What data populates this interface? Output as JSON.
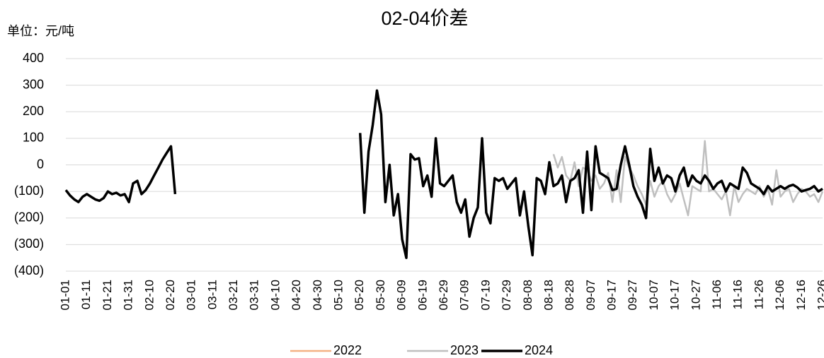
{
  "chart_data": {
    "type": "line",
    "title": "02-04价差",
    "unit_label": "单位：元/吨",
    "categories": [
      "01-01",
      null,
      null,
      null,
      null,
      "01-11",
      null,
      null,
      null,
      null,
      "01-21",
      null,
      null,
      null,
      null,
      "01-31",
      null,
      null,
      null,
      null,
      "02-10",
      null,
      null,
      null,
      null,
      "02-20",
      null,
      null,
      null,
      null,
      "03-01",
      null,
      null,
      null,
      null,
      "03-11",
      null,
      null,
      null,
      null,
      "03-21",
      null,
      null,
      null,
      null,
      "03-31",
      null,
      null,
      null,
      null,
      "04-10",
      null,
      null,
      null,
      null,
      "04-20",
      null,
      null,
      null,
      null,
      "04-30",
      null,
      null,
      null,
      null,
      "05-10",
      null,
      null,
      null,
      null,
      "05-20",
      null,
      null,
      null,
      null,
      "05-30",
      null,
      null,
      null,
      null,
      "06-09",
      null,
      null,
      null,
      null,
      "06-19",
      null,
      null,
      null,
      null,
      "06-29",
      null,
      null,
      null,
      null,
      "07-09",
      null,
      null,
      null,
      null,
      "07-19",
      null,
      null,
      null,
      null,
      "07-29",
      null,
      null,
      null,
      null,
      "08-08",
      null,
      null,
      null,
      null,
      "08-18",
      null,
      null,
      null,
      null,
      "08-28",
      null,
      null,
      null,
      null,
      "09-07",
      null,
      null,
      null,
      null,
      "09-17",
      null,
      null,
      null,
      null,
      "09-27",
      null,
      null,
      null,
      null,
      "10-07",
      null,
      null,
      null,
      null,
      "10-17",
      null,
      null,
      null,
      null,
      "10-27",
      null,
      null,
      null,
      null,
      "11-06",
      null,
      null,
      null,
      null,
      "11-16",
      null,
      null,
      null,
      null,
      "11-26",
      null,
      null,
      null,
      null,
      "12-06",
      null,
      null,
      null,
      null,
      "12-16",
      null,
      null,
      null,
      null,
      "12-26"
    ],
    "series": [
      {
        "name": "2022",
        "color": "#f4b183",
        "width": 2.5,
        "values": [
          null,
          null,
          null,
          null,
          null,
          null,
          null,
          null,
          null,
          null,
          null,
          null,
          null,
          null,
          null,
          null,
          null,
          null,
          null,
          null,
          null,
          null,
          null,
          null,
          null,
          null,
          null,
          null,
          null,
          null,
          null,
          null,
          null,
          null,
          null,
          null,
          null,
          null,
          null,
          null,
          null,
          null,
          null,
          null,
          null,
          null,
          null,
          null,
          null,
          null,
          null,
          null,
          null,
          null,
          null,
          null,
          null,
          null,
          null,
          null,
          null,
          null,
          null,
          null,
          null,
          null,
          null,
          null,
          null,
          null,
          null,
          null,
          null,
          null,
          null,
          null,
          null,
          null,
          null,
          null,
          null,
          null,
          null,
          null,
          null,
          null,
          null,
          null,
          null,
          null,
          null,
          null,
          null,
          null,
          null,
          null,
          null,
          null,
          null,
          null,
          null,
          null,
          null,
          null,
          null,
          null,
          null,
          null,
          null,
          null,
          null,
          null,
          null,
          null,
          null,
          null,
          null,
          null,
          null,
          null,
          null,
          null,
          null,
          null,
          null,
          null,
          null,
          null,
          null,
          null,
          null,
          null,
          null,
          null,
          null,
          null,
          null,
          null,
          null,
          null,
          null,
          null,
          null,
          null,
          null,
          null,
          null,
          null,
          null,
          null,
          null,
          null,
          null,
          null,
          null,
          null,
          null,
          null,
          null,
          null,
          null,
          null,
          null,
          null,
          null,
          null,
          null,
          null,
          null,
          null,
          null,
          null,
          null,
          null,
          null,
          null,
          null,
          null,
          null,
          null,
          null
        ]
      },
      {
        "name": "2023",
        "color": "#bfbfbf",
        "width": 2.5,
        "values": [
          null,
          null,
          null,
          null,
          null,
          null,
          null,
          null,
          null,
          null,
          null,
          null,
          null,
          null,
          null,
          null,
          null,
          null,
          null,
          null,
          null,
          null,
          null,
          null,
          null,
          null,
          null,
          null,
          null,
          null,
          null,
          null,
          null,
          null,
          null,
          null,
          null,
          null,
          null,
          null,
          null,
          null,
          null,
          null,
          null,
          null,
          null,
          null,
          null,
          null,
          null,
          null,
          null,
          null,
          null,
          null,
          null,
          null,
          null,
          null,
          null,
          null,
          null,
          null,
          null,
          null,
          null,
          null,
          null,
          null,
          null,
          null,
          null,
          null,
          null,
          null,
          null,
          null,
          null,
          null,
          null,
          null,
          null,
          null,
          null,
          null,
          null,
          null,
          null,
          null,
          null,
          null,
          null,
          null,
          null,
          null,
          null,
          null,
          null,
          null,
          null,
          null,
          null,
          null,
          null,
          null,
          null,
          null,
          null,
          null,
          null,
          null,
          null,
          null,
          null,
          null,
          40,
          -10,
          30,
          -40,
          -60,
          10,
          -80,
          -10,
          -20,
          -60,
          -40,
          -90,
          -70,
          -30,
          -140,
          -20,
          -140,
          30,
          -10,
          -40,
          -80,
          -110,
          -150,
          -60,
          -120,
          -80,
          -60,
          -110,
          -140,
          -110,
          -70,
          -130,
          -190,
          -80,
          -90,
          -100,
          90,
          -100,
          -90,
          -110,
          -130,
          -100,
          -190,
          -80,
          -140,
          -110,
          -90,
          -100,
          -110,
          -80,
          -120,
          -90,
          -150,
          -20,
          -120,
          -100,
          -90,
          -140,
          -110,
          -90,
          -100,
          -120,
          -110,
          -140,
          -100
        ]
      },
      {
        "name": "2024",
        "color": "#000000",
        "width": 3.5,
        "values": [
          -95,
          -115,
          -130,
          -140,
          -120,
          -110,
          -120,
          -130,
          -135,
          -125,
          -100,
          -110,
          -105,
          -115,
          -110,
          -140,
          -70,
          -60,
          -110,
          -95,
          -70,
          -40,
          -10,
          20,
          45,
          70,
          -110,
          null,
          null,
          null,
          null,
          null,
          null,
          null,
          null,
          null,
          null,
          null,
          null,
          null,
          null,
          null,
          null,
          null,
          null,
          null,
          null,
          null,
          null,
          null,
          null,
          null,
          null,
          null,
          null,
          null,
          null,
          null,
          null,
          null,
          null,
          null,
          null,
          null,
          null,
          null,
          null,
          null,
          null,
          null,
          120,
          -180,
          50,
          150,
          280,
          190,
          -140,
          0,
          -190,
          -110,
          -280,
          -350,
          40,
          20,
          25,
          -80,
          -40,
          -120,
          100,
          -70,
          -80,
          -60,
          -40,
          -140,
          -180,
          -130,
          -270,
          -200,
          -160,
          100,
          -180,
          -220,
          -50,
          -60,
          -50,
          -90,
          -70,
          -50,
          -190,
          -100,
          -230,
          -340,
          -50,
          -60,
          -110,
          10,
          -80,
          -70,
          -40,
          -140,
          -60,
          -50,
          -20,
          -180,
          50,
          -170,
          70,
          -30,
          -40,
          -50,
          -95,
          -90,
          0,
          70,
          0,
          -80,
          -120,
          -150,
          -200,
          60,
          -60,
          -10,
          -70,
          -40,
          -50,
          -100,
          -40,
          -10,
          -80,
          -40,
          -60,
          -70,
          -40,
          -60,
          -90,
          -70,
          -60,
          -100,
          -70,
          -80,
          -90,
          -10,
          -30,
          -70,
          -80,
          -90,
          -110,
          -80,
          -100,
          -90,
          -80,
          -90,
          -80,
          -75,
          -85,
          -100,
          -95,
          -90,
          -80,
          -100,
          -90
        ]
      }
    ],
    "ylim": [
      -400,
      400
    ],
    "yticks": [
      {
        "value": -400,
        "label": "(400)"
      },
      {
        "value": -300,
        "label": "(300)"
      },
      {
        "value": -200,
        "label": "(200)"
      },
      {
        "value": -100,
        "label": "(100)"
      },
      0,
      100,
      200,
      300,
      400
    ],
    "negative_tick_color": "#ff0000",
    "grid": true,
    "legend": "bottom"
  }
}
